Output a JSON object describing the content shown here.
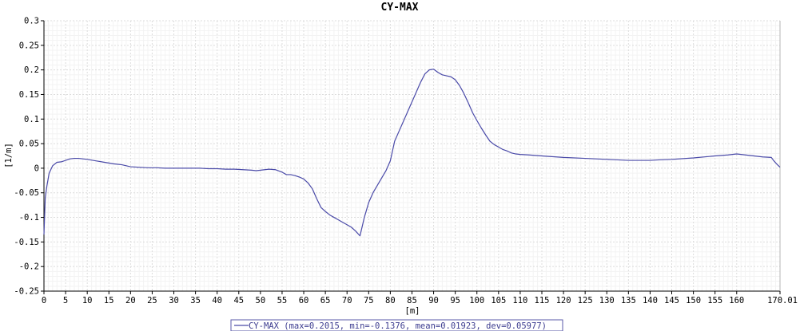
{
  "chart_data": {
    "type": "line",
    "title": "CY-MAX",
    "xlabel": "[m]",
    "ylabel": "[1/m]",
    "xlim": [
      0,
      170.01
    ],
    "ylim": [
      -0.25,
      0.3
    ],
    "x_ticks": [
      "0",
      "5",
      "10",
      "15",
      "20",
      "25",
      "30",
      "35",
      "40",
      "45",
      "50",
      "55",
      "60",
      "65",
      "70",
      "75",
      "80",
      "85",
      "90",
      "95",
      "100",
      "105",
      "110",
      "115",
      "120",
      "125",
      "130",
      "135",
      "140",
      "145",
      "150",
      "155",
      "160",
      "170.01"
    ],
    "y_ticks": [
      "0.3",
      "0.25",
      "0.2",
      "0.15",
      "0.1",
      "0.05",
      "0",
      "-0.05",
      "-0.1",
      "-0.15",
      "-0.2",
      "-0.25"
    ],
    "grid": true,
    "legend_position": "bottom-center",
    "series": [
      {
        "name": "CY-MAX (max=0.2015, min=-0.1376, mean=0.01923, dev=0.05977)",
        "color": "#4a4aa8",
        "x": [
          0,
          0.3,
          0.7,
          1.2,
          2,
          3,
          4,
          5,
          6,
          7,
          8,
          9,
          10,
          12,
          14,
          16,
          18,
          20,
          22,
          24,
          26,
          28,
          30,
          32,
          34,
          36,
          38,
          40,
          42,
          44,
          46,
          48,
          49,
          50,
          52,
          53.5,
          55,
          56,
          57,
          58,
          59,
          60,
          61,
          62,
          63,
          64,
          65,
          66,
          67,
          68,
          69,
          70,
          71,
          72,
          73,
          74,
          75,
          76,
          77,
          78,
          79,
          80,
          81,
          82,
          83,
          84,
          85,
          86,
          87,
          88,
          89,
          90,
          91,
          92,
          93,
          94,
          95,
          96,
          97,
          98,
          99,
          100,
          101,
          102,
          103,
          104,
          105,
          106,
          107,
          108,
          109,
          110,
          112,
          115,
          120,
          125,
          130,
          135,
          140,
          142,
          145,
          150,
          155,
          158,
          160,
          162,
          164,
          166,
          168,
          168.5,
          169.3,
          170.01
        ],
        "y": [
          -0.135,
          -0.06,
          -0.035,
          -0.01,
          0.005,
          0.012,
          0.013,
          0.016,
          0.019,
          0.02,
          0.02,
          0.019,
          0.018,
          0.015,
          0.012,
          0.009,
          0.007,
          0.003,
          0.002,
          0.001,
          0.001,
          0.0,
          0.0,
          0.0,
          0.0,
          0.0,
          -0.001,
          -0.001,
          -0.002,
          -0.002,
          -0.003,
          -0.004,
          -0.005,
          -0.004,
          -0.002,
          -0.003,
          -0.008,
          -0.013,
          -0.013,
          -0.015,
          -0.018,
          -0.022,
          -0.03,
          -0.042,
          -0.062,
          -0.08,
          -0.088,
          -0.095,
          -0.1,
          -0.105,
          -0.11,
          -0.115,
          -0.12,
          -0.128,
          -0.1376,
          -0.1,
          -0.07,
          -0.05,
          -0.035,
          -0.02,
          -0.005,
          0.015,
          0.055,
          0.075,
          0.095,
          0.115,
          0.135,
          0.155,
          0.175,
          0.192,
          0.2,
          0.2015,
          0.195,
          0.19,
          0.188,
          0.186,
          0.18,
          0.168,
          0.152,
          0.133,
          0.113,
          0.097,
          0.082,
          0.068,
          0.055,
          0.048,
          0.043,
          0.038,
          0.035,
          0.031,
          0.029,
          0.028,
          0.027,
          0.025,
          0.022,
          0.02,
          0.018,
          0.016,
          0.016,
          0.017,
          0.018,
          0.021,
          0.025,
          0.027,
          0.029,
          0.027,
          0.025,
          0.023,
          0.022,
          0.016,
          0.008,
          0.002
        ]
      }
    ]
  }
}
